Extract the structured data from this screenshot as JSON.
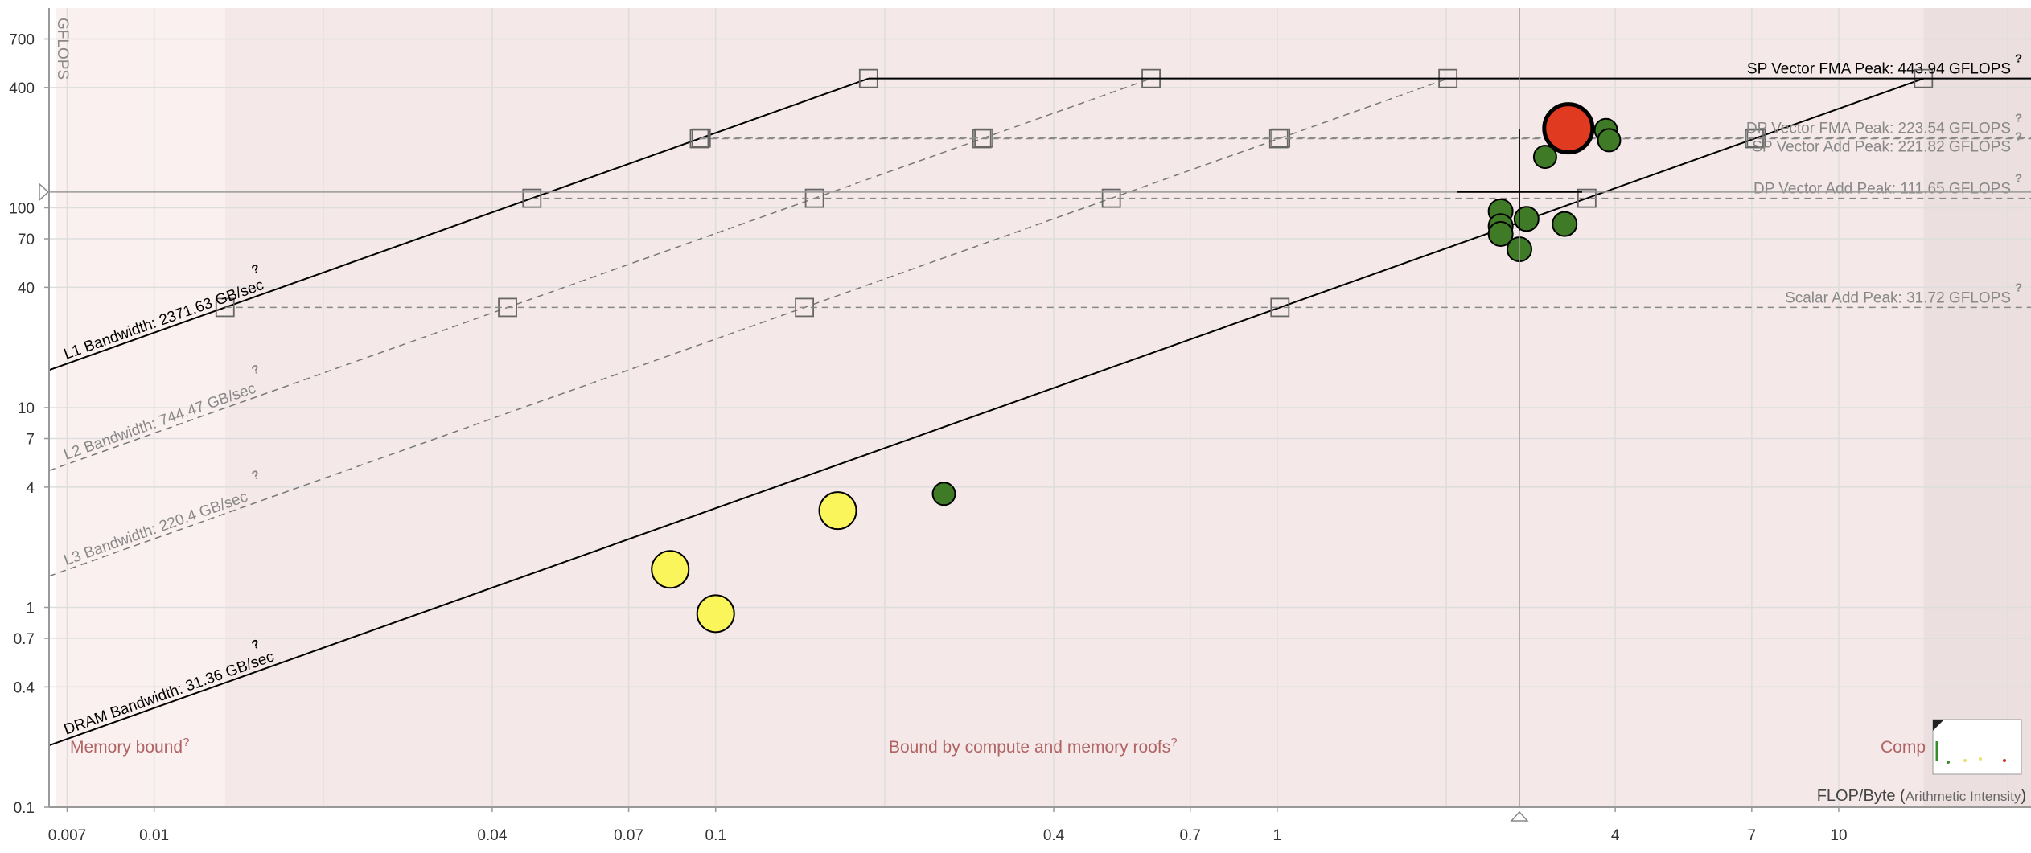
{
  "chart_data": {
    "type": "scatter",
    "title": "",
    "xlabel": "FLOP/Byte",
    "xlabel_note": "Arithmetic Intensity",
    "ylabel": "GFLOPS",
    "x_scale": "log",
    "y_scale": "log",
    "xlim": [
      0.0065,
      22
    ],
    "ylim": [
      0.1,
      1000
    ],
    "grid": true,
    "x_ticks": [
      {
        "v": 0.007,
        "label": "0.007"
      },
      {
        "v": 0.01,
        "label": "0.01"
      },
      {
        "v": 0.04,
        "label": "0.04"
      },
      {
        "v": 0.07,
        "label": "0.07"
      },
      {
        "v": 0.1,
        "label": "0.1"
      },
      {
        "v": 0.4,
        "label": "0.4"
      },
      {
        "v": 0.7,
        "label": "0.7"
      },
      {
        "v": 1,
        "label": "1"
      },
      {
        "v": 4,
        "label": "4"
      },
      {
        "v": 7,
        "label": "7"
      },
      {
        "v": 10,
        "label": "10"
      }
    ],
    "y_ticks": [
      {
        "v": 0.1,
        "label": "0.1"
      },
      {
        "v": 0.4,
        "label": "0.4"
      },
      {
        "v": 0.7,
        "label": "0.7"
      },
      {
        "v": 1,
        "label": "1"
      },
      {
        "v": 4,
        "label": "4"
      },
      {
        "v": 7,
        "label": "7"
      },
      {
        "v": 10,
        "label": "10"
      },
      {
        "v": 40,
        "label": "40"
      },
      {
        "v": 70,
        "label": "70"
      },
      {
        "v": 100,
        "label": "100"
      },
      {
        "v": 400,
        "label": "400"
      },
      {
        "v": 700,
        "label": "700"
      }
    ],
    "x_grid_extra": [
      0.02,
      0.2,
      2,
      20
    ],
    "y_grid_extra": [],
    "compute_roofs": [
      {
        "label": "SP Vector FMA Peak: 443.94 GFLOPS",
        "gflops": 443.94,
        "primary": true,
        "color": "#000000",
        "dashed": false
      },
      {
        "label": "DP Vector FMA Peak: 223.54 GFLOPS",
        "gflops": 223.54,
        "primary": false,
        "color": "#888888",
        "dashed": true
      },
      {
        "label": "SP Vector Add Peak: 221.82 GFLOPS",
        "gflops": 221.82,
        "primary": false,
        "color": "#888888",
        "dashed": true
      },
      {
        "label": "DP Vector Add Peak: 111.65 GFLOPS",
        "gflops": 111.65,
        "primary": false,
        "color": "#888888",
        "dashed": true
      },
      {
        "label": "Scalar Add Peak: 31.72 GFLOPS",
        "gflops": 31.72,
        "primary": false,
        "color": "#888888",
        "dashed": true
      }
    ],
    "memory_roofs": [
      {
        "label": "L1 Bandwidth: 2371.63 GB/sec",
        "gbps": 2371.63,
        "primary": true,
        "color": "#000000",
        "dashed": false
      },
      {
        "label": "L2 Bandwidth: 744.47 GB/sec",
        "gbps": 744.47,
        "primary": false,
        "color": "#777777",
        "dashed": true
      },
      {
        "label": "L3 Bandwidth: 220.4 GB/sec",
        "gbps": 220.4,
        "primary": false,
        "color": "#777777",
        "dashed": true
      },
      {
        "label": "DRAM Bandwidth: 31.36 GB/sec",
        "gbps": 31.36,
        "primary": true,
        "color": "#000000",
        "dashed": false
      }
    ],
    "help_mark": "?",
    "points": [
      {
        "x": 3.3,
        "y": 250,
        "r": 30,
        "color": "#e03a20"
      },
      {
        "x": 3.0,
        "y": 180,
        "r": 14,
        "color": "#3f7a26"
      },
      {
        "x": 3.85,
        "y": 245,
        "r": 14,
        "color": "#3f7a26"
      },
      {
        "x": 3.9,
        "y": 218,
        "r": 14,
        "color": "#3f7a26"
      },
      {
        "x": 2.5,
        "y": 96,
        "r": 15,
        "color": "#3f7a26"
      },
      {
        "x": 2.78,
        "y": 88,
        "r": 15,
        "color": "#3f7a26"
      },
      {
        "x": 2.5,
        "y": 81,
        "r": 15,
        "color": "#3f7a26"
      },
      {
        "x": 3.25,
        "y": 83,
        "r": 15,
        "color": "#3f7a26"
      },
      {
        "x": 2.5,
        "y": 74,
        "r": 15,
        "color": "#3f7a26"
      },
      {
        "x": 2.7,
        "y": 62,
        "r": 15,
        "color": "#3f7a26"
      },
      {
        "x": 0.255,
        "y": 3.7,
        "r": 14,
        "color": "#3f7a26"
      },
      {
        "x": 0.165,
        "y": 3.05,
        "r": 23,
        "color": "#f9f55a"
      },
      {
        "x": 0.083,
        "y": 1.55,
        "r": 23,
        "color": "#f9f55a"
      },
      {
        "x": 0.1,
        "y": 0.93,
        "r": 23,
        "color": "#f9f55a"
      }
    ],
    "regions": {
      "memory_bound": "Memory bound",
      "mixed": "Bound by compute and memory roofs",
      "compute_bound": "Comp"
    },
    "colors": {
      "region_memory": "#fbf0f0",
      "region_mixed": "#f4e8e8",
      "region_compute": "#ecdfdf",
      "region_text": "#b06464",
      "grid": "#dddddd",
      "axis": "#999999"
    }
  }
}
